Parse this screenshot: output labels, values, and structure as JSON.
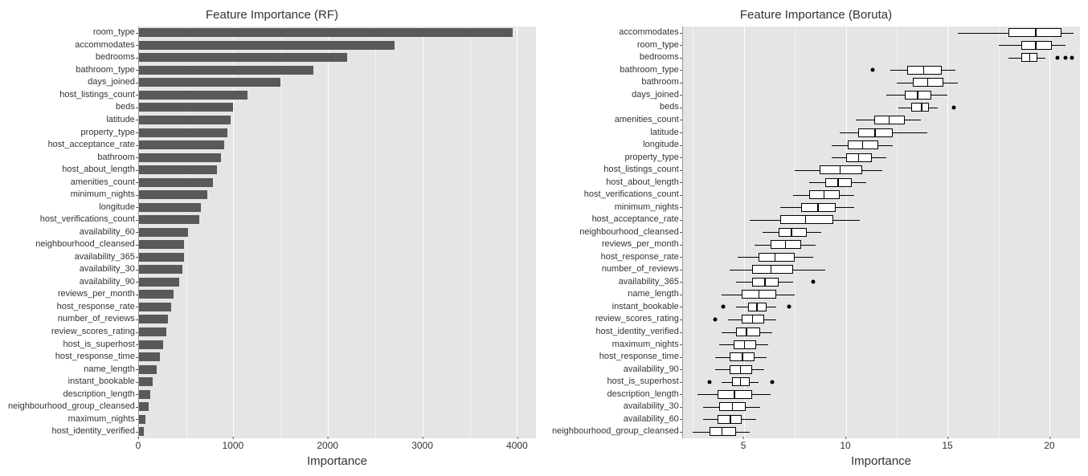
{
  "left": {
    "title": "Feature Importance (RF)",
    "type": "bar",
    "xlabel": "Importance",
    "xlim": [
      0,
      4200
    ],
    "xticks": [
      0,
      1000,
      2000,
      3000,
      4000
    ],
    "minor_step": 500,
    "bar_color": "#595959",
    "plot_bg": "#e5e5e5",
    "grid_color": "#ffffff",
    "items": [
      {
        "label": "room_type",
        "value": 3950
      },
      {
        "label": "accommodates",
        "value": 2700
      },
      {
        "label": "bedrooms",
        "value": 2200
      },
      {
        "label": "bathroom_type",
        "value": 1850
      },
      {
        "label": "days_joined",
        "value": 1500
      },
      {
        "label": "host_listings_count",
        "value": 1150
      },
      {
        "label": "beds",
        "value": 1000
      },
      {
        "label": "latitude",
        "value": 970
      },
      {
        "label": "property_type",
        "value": 940
      },
      {
        "label": "host_acceptance_rate",
        "value": 900
      },
      {
        "label": "bathroom",
        "value": 870
      },
      {
        "label": "host_about_length",
        "value": 830
      },
      {
        "label": "amenities_count",
        "value": 780
      },
      {
        "label": "minimum_nights",
        "value": 720
      },
      {
        "label": "longitude",
        "value": 660
      },
      {
        "label": "host_verifications_count",
        "value": 640
      },
      {
        "label": "availability_60",
        "value": 520
      },
      {
        "label": "neighbourhood_cleansed",
        "value": 480
      },
      {
        "label": "availability_365",
        "value": 480
      },
      {
        "label": "availability_30",
        "value": 460
      },
      {
        "label": "availability_90",
        "value": 430
      },
      {
        "label": "reviews_per_month",
        "value": 370
      },
      {
        "label": "host_response_rate",
        "value": 340
      },
      {
        "label": "number_of_reviews",
        "value": 310
      },
      {
        "label": "review_scores_rating",
        "value": 290
      },
      {
        "label": "host_is_superhost",
        "value": 260
      },
      {
        "label": "host_response_time",
        "value": 220
      },
      {
        "label": "name_length",
        "value": 190
      },
      {
        "label": "instant_bookable",
        "value": 150
      },
      {
        "label": "description_length",
        "value": 120
      },
      {
        "label": "neighbourhood_group_cleansed",
        "value": 100
      },
      {
        "label": "maximum_nights",
        "value": 70
      },
      {
        "label": "host_identity_verified",
        "value": 50
      }
    ]
  },
  "right": {
    "title": "Feature Importance (Boruta)",
    "type": "boxplot",
    "xlabel": "Importance",
    "xlim": [
      2,
      21.5
    ],
    "xticks": [
      5,
      10,
      15,
      20
    ],
    "minor_step": 2.5,
    "box_fill": "#ffffff",
    "box_stroke": "#000000",
    "plot_bg": "#e5e5e5",
    "grid_color": "#ffffff",
    "items": [
      {
        "label": "accommodates",
        "low": 15.5,
        "q1": 18.0,
        "med": 19.3,
        "q3": 20.6,
        "high": 21.2,
        "outliers": []
      },
      {
        "label": "room_type",
        "low": 17.5,
        "q1": 18.6,
        "med": 19.3,
        "q3": 20.1,
        "high": 20.8,
        "outliers": []
      },
      {
        "label": "bedrooms",
        "low": 18.0,
        "q1": 18.6,
        "med": 19.0,
        "q3": 19.4,
        "high": 19.8,
        "outliers": [
          20.4,
          20.8,
          21.1
        ]
      },
      {
        "label": "bathroom_type",
        "low": 12.2,
        "q1": 13.0,
        "med": 13.8,
        "q3": 14.7,
        "high": 15.4,
        "outliers": [
          11.3
        ]
      },
      {
        "label": "bathroom",
        "low": 12.5,
        "q1": 13.3,
        "med": 14.0,
        "q3": 14.8,
        "high": 15.5,
        "outliers": []
      },
      {
        "label": "days_joined",
        "low": 12.0,
        "q1": 12.9,
        "med": 13.5,
        "q3": 14.2,
        "high": 15.0,
        "outliers": []
      },
      {
        "label": "beds",
        "low": 12.6,
        "q1": 13.2,
        "med": 13.7,
        "q3": 14.1,
        "high": 14.5,
        "outliers": [
          15.3
        ]
      },
      {
        "label": "amenities_count",
        "low": 10.5,
        "q1": 11.4,
        "med": 12.1,
        "q3": 12.9,
        "high": 13.7,
        "outliers": []
      },
      {
        "label": "latitude",
        "low": 9.7,
        "q1": 10.6,
        "med": 11.4,
        "q3": 12.3,
        "high": 14.0,
        "outliers": []
      },
      {
        "label": "longitude",
        "low": 9.3,
        "q1": 10.1,
        "med": 10.8,
        "q3": 11.6,
        "high": 12.3,
        "outliers": []
      },
      {
        "label": "property_type",
        "low": 9.3,
        "q1": 10.0,
        "med": 10.6,
        "q3": 11.3,
        "high": 12.0,
        "outliers": []
      },
      {
        "label": "host_listings_count",
        "low": 7.5,
        "q1": 8.7,
        "med": 9.7,
        "q3": 10.8,
        "high": 11.8,
        "outliers": []
      },
      {
        "label": "host_about_length",
        "low": 8.2,
        "q1": 9.0,
        "med": 9.6,
        "q3": 10.3,
        "high": 11.0,
        "outliers": []
      },
      {
        "label": "host_verifications_count",
        "low": 7.4,
        "q1": 8.2,
        "med": 8.9,
        "q3": 9.7,
        "high": 10.4,
        "outliers": []
      },
      {
        "label": "minimum_nights",
        "low": 6.8,
        "q1": 7.8,
        "med": 8.6,
        "q3": 9.5,
        "high": 10.4,
        "outliers": []
      },
      {
        "label": "host_acceptance_rate",
        "low": 5.3,
        "q1": 6.8,
        "med": 8.0,
        "q3": 9.4,
        "high": 10.7,
        "outliers": []
      },
      {
        "label": "neighbourhood_cleansed",
        "low": 5.9,
        "q1": 6.7,
        "med": 7.3,
        "q3": 8.1,
        "high": 8.8,
        "outliers": []
      },
      {
        "label": "reviews_per_month",
        "low": 5.5,
        "q1": 6.3,
        "med": 7.0,
        "q3": 7.8,
        "high": 8.5,
        "outliers": []
      },
      {
        "label": "host_response_rate",
        "low": 4.7,
        "q1": 5.7,
        "med": 6.5,
        "q3": 7.5,
        "high": 8.4,
        "outliers": []
      },
      {
        "label": "number_of_reviews",
        "low": 4.3,
        "q1": 5.4,
        "med": 6.3,
        "q3": 7.4,
        "high": 9.0,
        "outliers": []
      },
      {
        "label": "availability_365",
        "low": 4.6,
        "q1": 5.4,
        "med": 6.0,
        "q3": 6.7,
        "high": 7.4,
        "outliers": [
          8.4
        ]
      },
      {
        "label": "name_length",
        "low": 3.9,
        "q1": 4.9,
        "med": 5.7,
        "q3": 6.6,
        "high": 7.5,
        "outliers": []
      },
      {
        "label": "instant_bookable",
        "low": 4.6,
        "q1": 5.2,
        "med": 5.6,
        "q3": 6.1,
        "high": 6.6,
        "outliers": [
          4.0,
          7.2
        ]
      },
      {
        "label": "review_scores_rating",
        "low": 4.2,
        "q1": 4.9,
        "med": 5.4,
        "q3": 6.0,
        "high": 6.6,
        "outliers": [
          3.6
        ]
      },
      {
        "label": "host_identity_verified",
        "low": 3.9,
        "q1": 4.6,
        "med": 5.1,
        "q3": 5.8,
        "high": 6.4,
        "outliers": []
      },
      {
        "label": "maximum_nights",
        "low": 3.8,
        "q1": 4.5,
        "med": 5.0,
        "q3": 5.6,
        "high": 6.2,
        "outliers": []
      },
      {
        "label": "host_response_time",
        "low": 3.6,
        "q1": 4.3,
        "med": 4.9,
        "q3": 5.5,
        "high": 6.1,
        "outliers": []
      },
      {
        "label": "availability_90",
        "low": 3.6,
        "q1": 4.3,
        "med": 4.8,
        "q3": 5.4,
        "high": 6.0,
        "outliers": []
      },
      {
        "label": "host_is_superhost",
        "low": 3.9,
        "q1": 4.4,
        "med": 4.8,
        "q3": 5.3,
        "high": 5.7,
        "outliers": [
          3.3,
          6.4
        ]
      },
      {
        "label": "description_length",
        "low": 2.7,
        "q1": 3.7,
        "med": 4.5,
        "q3": 5.4,
        "high": 6.3,
        "outliers": []
      },
      {
        "label": "availability_30",
        "low": 3.0,
        "q1": 3.8,
        "med": 4.4,
        "q3": 5.1,
        "high": 5.8,
        "outliers": []
      },
      {
        "label": "availability_60",
        "low": 3.0,
        "q1": 3.7,
        "med": 4.3,
        "q3": 4.9,
        "high": 5.6,
        "outliers": []
      },
      {
        "label": "neighbourhood_group_cleansed",
        "low": 2.5,
        "q1": 3.3,
        "med": 3.9,
        "q3": 4.6,
        "high": 5.3,
        "outliers": []
      }
    ]
  }
}
